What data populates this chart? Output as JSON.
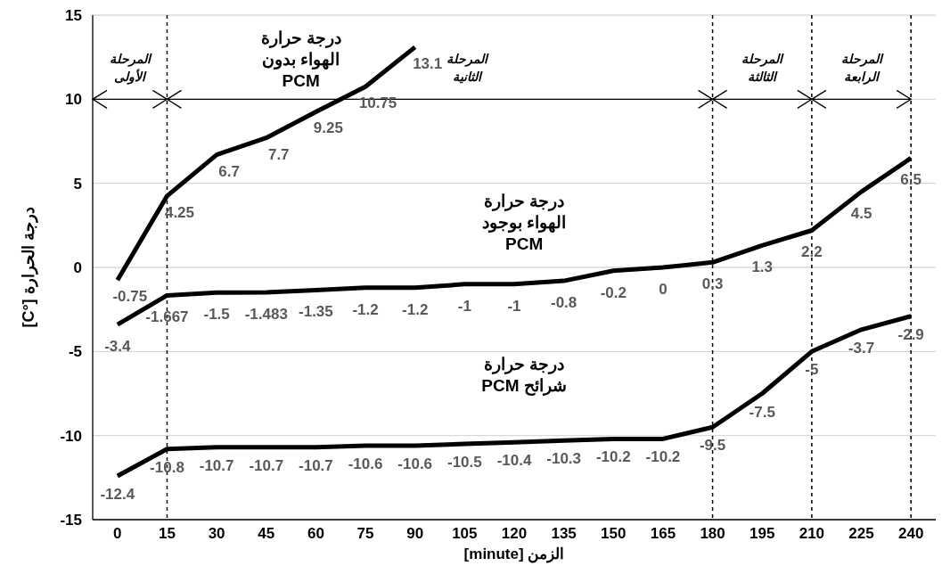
{
  "chart_data": {
    "type": "line",
    "xlabel": "الزمن [minute]",
    "ylabel": "درجة الحرارة [°C]",
    "categories": [
      "0",
      "15",
      "30",
      "45",
      "60",
      "75",
      "90",
      "105",
      "120",
      "135",
      "150",
      "165",
      "180",
      "195",
      "210",
      "225",
      "240"
    ],
    "series": [
      {
        "name": "درجة حرارة الهواء بدون PCM",
        "color": "#000000",
        "values": [
          -0.75,
          4.25,
          6.7,
          7.7,
          9.25,
          10.75,
          13.1,
          null,
          null,
          null,
          null,
          null,
          null,
          null,
          null,
          null,
          null
        ]
      },
      {
        "name": "درجة حرارة الهواء بوجود PCM",
        "color": "#000000",
        "values": [
          -3.4,
          -1.667,
          -1.5,
          -1.483,
          -1.35,
          -1.2,
          -1.2,
          -1,
          -1,
          -0.8,
          -0.2,
          0,
          0.3,
          1.3,
          2.2,
          4.5,
          6.5
        ]
      },
      {
        "name": "درجة حرارة شرائح PCM",
        "color": "#000000",
        "values": [
          -12.4,
          -10.8,
          -10.7,
          -10.7,
          -10.7,
          -10.6,
          -10.6,
          -10.5,
          -10.4,
          -10.3,
          -10.2,
          -10.2,
          -9.5,
          -7.5,
          -5,
          -3.7,
          -2.9
        ]
      }
    ],
    "ylim": [
      -15,
      15
    ],
    "yticks": [
      -15,
      -10,
      -5,
      0,
      5,
      10,
      15
    ],
    "grid": "y",
    "legend": false,
    "marker": "none",
    "line_style": "solid",
    "data_labels": true,
    "ref_lines": [
      {
        "axis": "x",
        "value": "15",
        "line_style": "dashed",
        "color": "#000000"
      },
      {
        "axis": "x",
        "value": "180",
        "line_style": "dashed",
        "color": "#000000"
      },
      {
        "axis": "x",
        "value": "210",
        "line_style": "dashed",
        "color": "#000000"
      },
      {
        "axis": "x",
        "value": "240",
        "line_style": "dashed",
        "color": "#000000"
      }
    ],
    "annotations": [
      "المرحلة الأولى",
      "المرحلة الثانية",
      "المرحلة الثالثة",
      "المرحلة الرابعة"
    ]
  }
}
